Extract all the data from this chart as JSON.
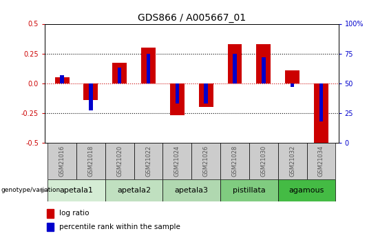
{
  "title": "GDS866 / A005667_01",
  "samples": [
    "GSM21016",
    "GSM21018",
    "GSM21020",
    "GSM21022",
    "GSM21024",
    "GSM21026",
    "GSM21028",
    "GSM21030",
    "GSM21032",
    "GSM21034"
  ],
  "log_ratio": [
    0.05,
    -0.14,
    0.17,
    0.3,
    -0.27,
    -0.2,
    0.33,
    0.33,
    0.11,
    -0.5
  ],
  "percentile_rank": [
    57,
    27,
    63,
    75,
    33,
    33,
    75,
    72,
    47,
    18
  ],
  "genotype_groups": [
    {
      "label": "apetala1",
      "samples": [
        0,
        1
      ],
      "color": "#d4ecd4"
    },
    {
      "label": "apetala2",
      "samples": [
        2,
        3
      ],
      "color": "#c0e0c0"
    },
    {
      "label": "apetala3",
      "samples": [
        4,
        5
      ],
      "color": "#b0d8b0"
    },
    {
      "label": "pistillata",
      "samples": [
        6,
        7
      ],
      "color": "#80cc80"
    },
    {
      "label": "agamous",
      "samples": [
        8,
        9
      ],
      "color": "#44bb44"
    }
  ],
  "ylim": [
    -0.5,
    0.5
  ],
  "yticks_left": [
    -0.5,
    -0.25,
    0.0,
    0.25,
    0.5
  ],
  "yticks_right": [
    0,
    25,
    50,
    75,
    100
  ],
  "red_color": "#cc0000",
  "blue_color": "#0000cc",
  "title_fontsize": 10,
  "tick_fontsize": 7,
  "label_fontsize": 7,
  "group_label_fontsize": 8,
  "legend_fontsize": 7.5,
  "sample_label_color": "#555555",
  "gray_box_color": "#cccccc"
}
